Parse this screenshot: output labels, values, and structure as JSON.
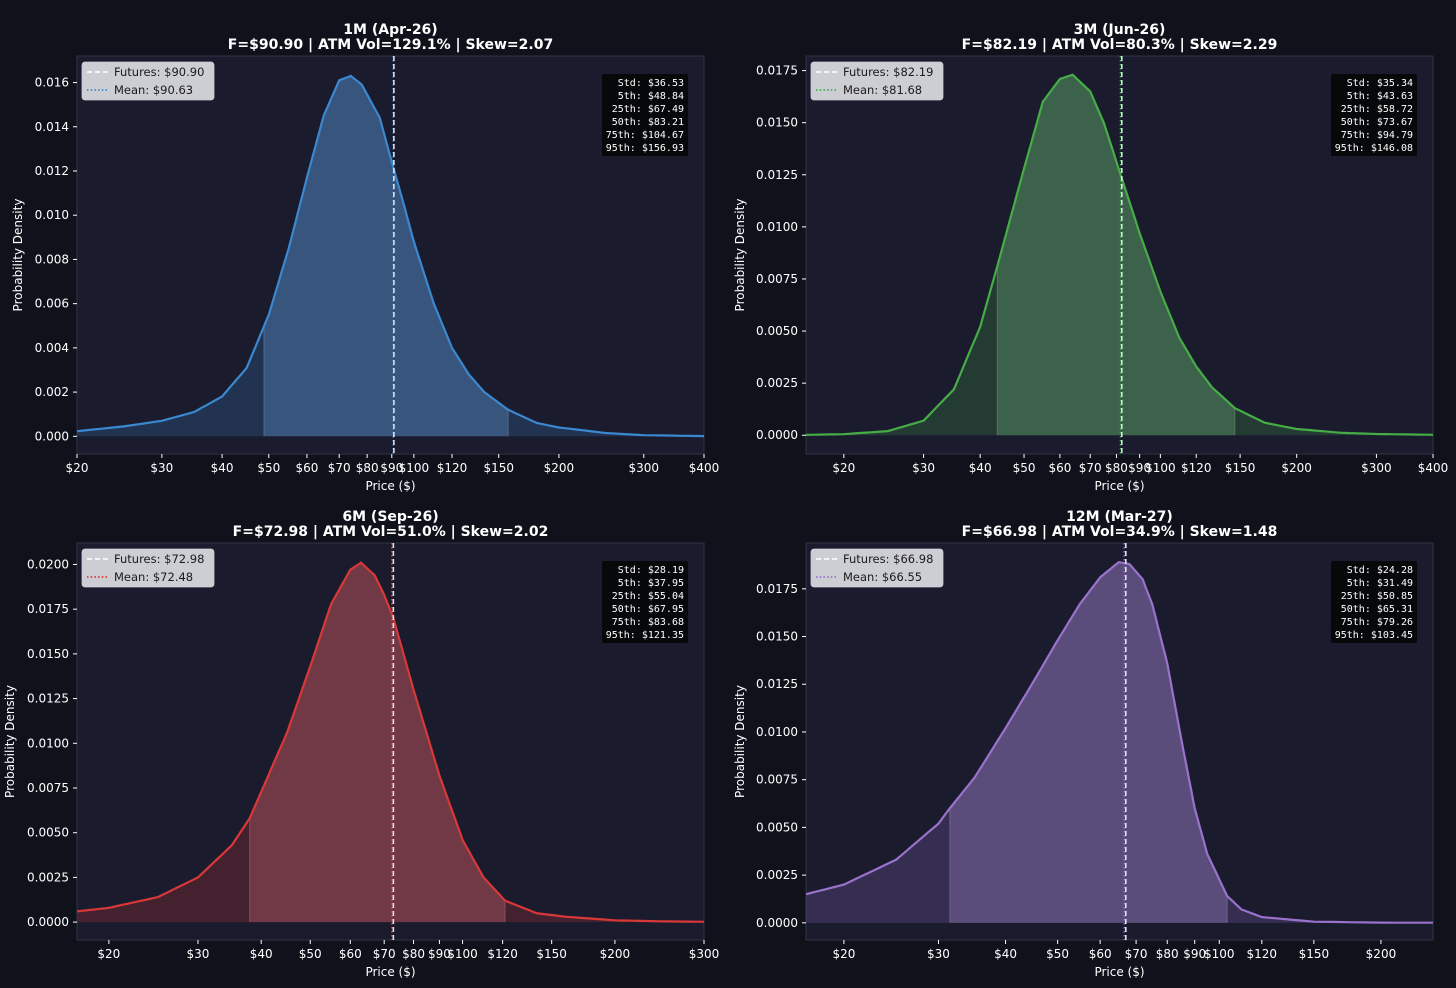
{
  "page": {
    "background": "#0f121b",
    "plot_background": "#1a1b2d"
  },
  "chart_data": [
    {
      "type": "area",
      "title": "1M (Apr-26)",
      "subtitle": "F=$90.90  |  ATM Vol=129.1%  |  Skew=2.07",
      "xlabel": "Price ($)",
      "ylabel": "Probability Density",
      "x_scale": "log",
      "xlim": [
        20,
        400
      ],
      "ylim": [
        -0.0008,
        0.0172
      ],
      "x_ticks": [
        {
          "v": 20,
          "label": "$20"
        },
        {
          "v": 30,
          "label": "$30"
        },
        {
          "v": 40,
          "label": "$40"
        },
        {
          "v": 50,
          "label": "$50"
        },
        {
          "v": 60,
          "label": "$60"
        },
        {
          "v": 70,
          "label": "$70"
        },
        {
          "v": 80,
          "label": "$80"
        },
        {
          "v": 90,
          "label": "$90"
        },
        {
          "v": 100,
          "label": "$100"
        },
        {
          "v": 120,
          "label": "$120"
        },
        {
          "v": 150,
          "label": "$150"
        },
        {
          "v": 200,
          "label": "$200"
        },
        {
          "v": 300,
          "label": "$300"
        },
        {
          "v": 400,
          "label": "$400"
        }
      ],
      "y_ticks": [
        {
          "v": 0,
          "label": "0.000"
        },
        {
          "v": 0.002,
          "label": "0.002"
        },
        {
          "v": 0.004,
          "label": "0.004"
        },
        {
          "v": 0.006,
          "label": "0.006"
        },
        {
          "v": 0.008,
          "label": "0.008"
        },
        {
          "v": 0.01,
          "label": "0.010"
        },
        {
          "v": 0.012,
          "label": "0.012"
        },
        {
          "v": 0.014,
          "label": "0.014"
        },
        {
          "v": 0.016,
          "label": "0.016"
        }
      ],
      "color": "#3a88d0",
      "futures": 90.9,
      "mean": 90.63,
      "inner_range": [
        48.84,
        156.93
      ],
      "legend": [
        "Futures: $90.90",
        "Mean: $90.63"
      ],
      "stats": [
        "Std: $36.53",
        "5th: $48.84",
        "25th: $67.49",
        "50th: $83.21",
        "75th: $104.67",
        "95th: $156.93"
      ],
      "density": [
        [
          20,
          0.00023
        ],
        [
          25,
          0.00045
        ],
        [
          30,
          0.0007
        ],
        [
          35,
          0.0011
        ],
        [
          40,
          0.0018
        ],
        [
          45,
          0.0031
        ],
        [
          50,
          0.0055
        ],
        [
          55,
          0.0085
        ],
        [
          60,
          0.0117
        ],
        [
          65,
          0.0145
        ],
        [
          70,
          0.0161
        ],
        [
          74,
          0.0163
        ],
        [
          78,
          0.0159
        ],
        [
          85,
          0.0144
        ],
        [
          90,
          0.0124
        ],
        [
          95,
          0.0106
        ],
        [
          100,
          0.0088
        ],
        [
          110,
          0.006
        ],
        [
          120,
          0.004
        ],
        [
          130,
          0.0028
        ],
        [
          140,
          0.002
        ],
        [
          156.93,
          0.0012
        ],
        [
          180,
          0.0006
        ],
        [
          200,
          0.0004
        ],
        [
          250,
          0.00015
        ],
        [
          300,
          5e-05
        ],
        [
          400,
          1e-05
        ]
      ]
    },
    {
      "type": "area",
      "title": "3M (Jun-26)",
      "subtitle": "F=$82.19  |  ATM Vol=80.3%  |  Skew=2.29",
      "xlabel": "Price ($)",
      "ylabel": "Probability Density",
      "x_scale": "log",
      "xlim": [
        16.5,
        400
      ],
      "ylim": [
        -0.0009,
        0.0182
      ],
      "x_ticks": [
        {
          "v": 20,
          "label": "$20"
        },
        {
          "v": 30,
          "label": "$30"
        },
        {
          "v": 40,
          "label": "$40"
        },
        {
          "v": 50,
          "label": "$50"
        },
        {
          "v": 60,
          "label": "$60"
        },
        {
          "v": 70,
          "label": "$70"
        },
        {
          "v": 80,
          "label": "$80"
        },
        {
          "v": 90,
          "label": "$90"
        },
        {
          "v": 100,
          "label": "$100"
        },
        {
          "v": 120,
          "label": "$120"
        },
        {
          "v": 150,
          "label": "$150"
        },
        {
          "v": 200,
          "label": "$200"
        },
        {
          "v": 300,
          "label": "$300"
        },
        {
          "v": 400,
          "label": "$400"
        }
      ],
      "y_ticks": [
        {
          "v": 0,
          "label": "0.0000"
        },
        {
          "v": 0.0025,
          "label": "0.0025"
        },
        {
          "v": 0.005,
          "label": "0.0050"
        },
        {
          "v": 0.0075,
          "label": "0.0075"
        },
        {
          "v": 0.01,
          "label": "0.0100"
        },
        {
          "v": 0.0125,
          "label": "0.0125"
        },
        {
          "v": 0.015,
          "label": "0.0150"
        },
        {
          "v": 0.0175,
          "label": "0.0175"
        }
      ],
      "color": "#46ad46",
      "futures": 82.19,
      "mean": 81.68,
      "inner_range": [
        43.63,
        146.08
      ],
      "legend": [
        "Futures: $82.19",
        "Mean: $81.68"
      ],
      "stats": [
        "Std: $35.34",
        "5th: $43.63",
        "25th: $58.72",
        "50th: $73.67",
        "75th: $94.79",
        "95th: $146.08"
      ],
      "density": [
        [
          16.5,
          2e-05
        ],
        [
          20,
          5e-05
        ],
        [
          25,
          0.0002
        ],
        [
          30,
          0.0007
        ],
        [
          35,
          0.0022
        ],
        [
          40,
          0.0052
        ],
        [
          43.63,
          0.0081
        ],
        [
          50,
          0.0128
        ],
        [
          55,
          0.016
        ],
        [
          60,
          0.0171
        ],
        [
          64,
          0.0173
        ],
        [
          70,
          0.0165
        ],
        [
          75,
          0.015
        ],
        [
          82,
          0.0124
        ],
        [
          90,
          0.0097
        ],
        [
          100,
          0.0069
        ],
        [
          110,
          0.0047
        ],
        [
          120,
          0.0033
        ],
        [
          130,
          0.0023
        ],
        [
          146.08,
          0.0013
        ],
        [
          170,
          0.0006
        ],
        [
          200,
          0.0003
        ],
        [
          250,
          0.00012
        ],
        [
          300,
          6e-05
        ],
        [
          400,
          2e-05
        ]
      ]
    },
    {
      "type": "area",
      "title": "6M (Sep-26)",
      "subtitle": "F=$72.98  |  ATM Vol=51.0%  |  Skew=2.02",
      "xlabel": "Price ($)",
      "ylabel": "Probability Density",
      "x_scale": "log",
      "xlim": [
        17.3,
        300
      ],
      "ylim": [
        -0.001,
        0.0212
      ],
      "x_ticks": [
        {
          "v": 20,
          "label": "$20"
        },
        {
          "v": 30,
          "label": "$30"
        },
        {
          "v": 40,
          "label": "$40"
        },
        {
          "v": 50,
          "label": "$50"
        },
        {
          "v": 60,
          "label": "$60"
        },
        {
          "v": 70,
          "label": "$70"
        },
        {
          "v": 80,
          "label": "$80"
        },
        {
          "v": 90,
          "label": "$90"
        },
        {
          "v": 100,
          "label": "$100"
        },
        {
          "v": 120,
          "label": "$120"
        },
        {
          "v": 150,
          "label": "$150"
        },
        {
          "v": 200,
          "label": "$200"
        },
        {
          "v": 300,
          "label": "$300"
        }
      ],
      "y_ticks": [
        {
          "v": 0,
          "label": "0.0000"
        },
        {
          "v": 0.0025,
          "label": "0.0025"
        },
        {
          "v": 0.005,
          "label": "0.0050"
        },
        {
          "v": 0.0075,
          "label": "0.0075"
        },
        {
          "v": 0.01,
          "label": "0.0100"
        },
        {
          "v": 0.0125,
          "label": "0.0125"
        },
        {
          "v": 0.015,
          "label": "0.0150"
        },
        {
          "v": 0.0175,
          "label": "0.0175"
        },
        {
          "v": 0.02,
          "label": "0.0200"
        }
      ],
      "color": "#d93838",
      "futures": 72.98,
      "mean": 72.48,
      "inner_range": [
        37.95,
        121.35
      ],
      "legend": [
        "Futures: $72.98",
        "Mean: $72.48"
      ],
      "stats": [
        "Std: $28.19",
        "5th: $37.95",
        "25th: $55.04",
        "50th: $67.95",
        "75th: $83.68",
        "95th: $121.35"
      ],
      "density": [
        [
          17.3,
          0.0006
        ],
        [
          20,
          0.0008
        ],
        [
          25,
          0.0014
        ],
        [
          30,
          0.0025
        ],
        [
          35,
          0.0043
        ],
        [
          37.95,
          0.0058
        ],
        [
          45,
          0.0106
        ],
        [
          50,
          0.0143
        ],
        [
          55,
          0.0178
        ],
        [
          60,
          0.0197
        ],
        [
          63,
          0.0201
        ],
        [
          67,
          0.0194
        ],
        [
          70,
          0.0183
        ],
        [
          73,
          0.017
        ],
        [
          80,
          0.013
        ],
        [
          90,
          0.0082
        ],
        [
          100,
          0.0046
        ],
        [
          110,
          0.0025
        ],
        [
          121.35,
          0.0012
        ],
        [
          140,
          0.0005
        ],
        [
          160,
          0.0003
        ],
        [
          200,
          0.0001
        ],
        [
          250,
          4e-05
        ],
        [
          300,
          2e-05
        ]
      ]
    },
    {
      "type": "area",
      "title": "12M (Mar-27)",
      "subtitle": "F=$66.98  |  ATM Vol=34.9%  |  Skew=1.48",
      "xlabel": "Price ($)",
      "ylabel": "Probability Density",
      "x_scale": "log",
      "xlim": [
        17,
        250
      ],
      "ylim": [
        -0.0009,
        0.0199
      ],
      "x_ticks": [
        {
          "v": 20,
          "label": "$20"
        },
        {
          "v": 30,
          "label": "$30"
        },
        {
          "v": 40,
          "label": "$40"
        },
        {
          "v": 50,
          "label": "$50"
        },
        {
          "v": 60,
          "label": "$60"
        },
        {
          "v": 70,
          "label": "$70"
        },
        {
          "v": 80,
          "label": "$80"
        },
        {
          "v": 90,
          "label": "$90"
        },
        {
          "v": 100,
          "label": "$100"
        },
        {
          "v": 120,
          "label": "$120"
        },
        {
          "v": 150,
          "label": "$150"
        },
        {
          "v": 200,
          "label": "$200"
        }
      ],
      "y_ticks": [
        {
          "v": 0,
          "label": "0.0000"
        },
        {
          "v": 0.0025,
          "label": "0.0025"
        },
        {
          "v": 0.005,
          "label": "0.0050"
        },
        {
          "v": 0.0075,
          "label": "0.0075"
        },
        {
          "v": 0.01,
          "label": "0.0100"
        },
        {
          "v": 0.0125,
          "label": "0.0125"
        },
        {
          "v": 0.015,
          "label": "0.0150"
        },
        {
          "v": 0.0175,
          "label": "0.0175"
        }
      ],
      "color": "#9a72cc",
      "futures": 66.98,
      "mean": 66.55,
      "inner_range": [
        31.49,
        103.45
      ],
      "legend": [
        "Futures: $66.98",
        "Mean: $66.55"
      ],
      "stats": [
        "Std: $24.28",
        "5th: $31.49",
        "25th: $50.85",
        "50th: $65.31",
        "75th: $79.26",
        "95th: $103.45"
      ],
      "density": [
        [
          17,
          0.0015
        ],
        [
          20,
          0.002
        ],
        [
          25,
          0.0033
        ],
        [
          30,
          0.0052
        ],
        [
          31.49,
          0.006
        ],
        [
          35,
          0.0076
        ],
        [
          40,
          0.0102
        ],
        [
          45,
          0.0126
        ],
        [
          50,
          0.0148
        ],
        [
          55,
          0.0167
        ],
        [
          60,
          0.0181
        ],
        [
          65,
          0.0189
        ],
        [
          68,
          0.0188
        ],
        [
          72,
          0.018
        ],
        [
          75,
          0.0167
        ],
        [
          80,
          0.0136
        ],
        [
          85,
          0.0096
        ],
        [
          90,
          0.006
        ],
        [
          95,
          0.0036
        ],
        [
          103.45,
          0.0014
        ],
        [
          110,
          0.0007
        ],
        [
          120,
          0.0003
        ],
        [
          150,
          6e-05
        ],
        [
          200,
          1e-05
        ],
        [
          250,
          5e-06
        ]
      ]
    }
  ]
}
